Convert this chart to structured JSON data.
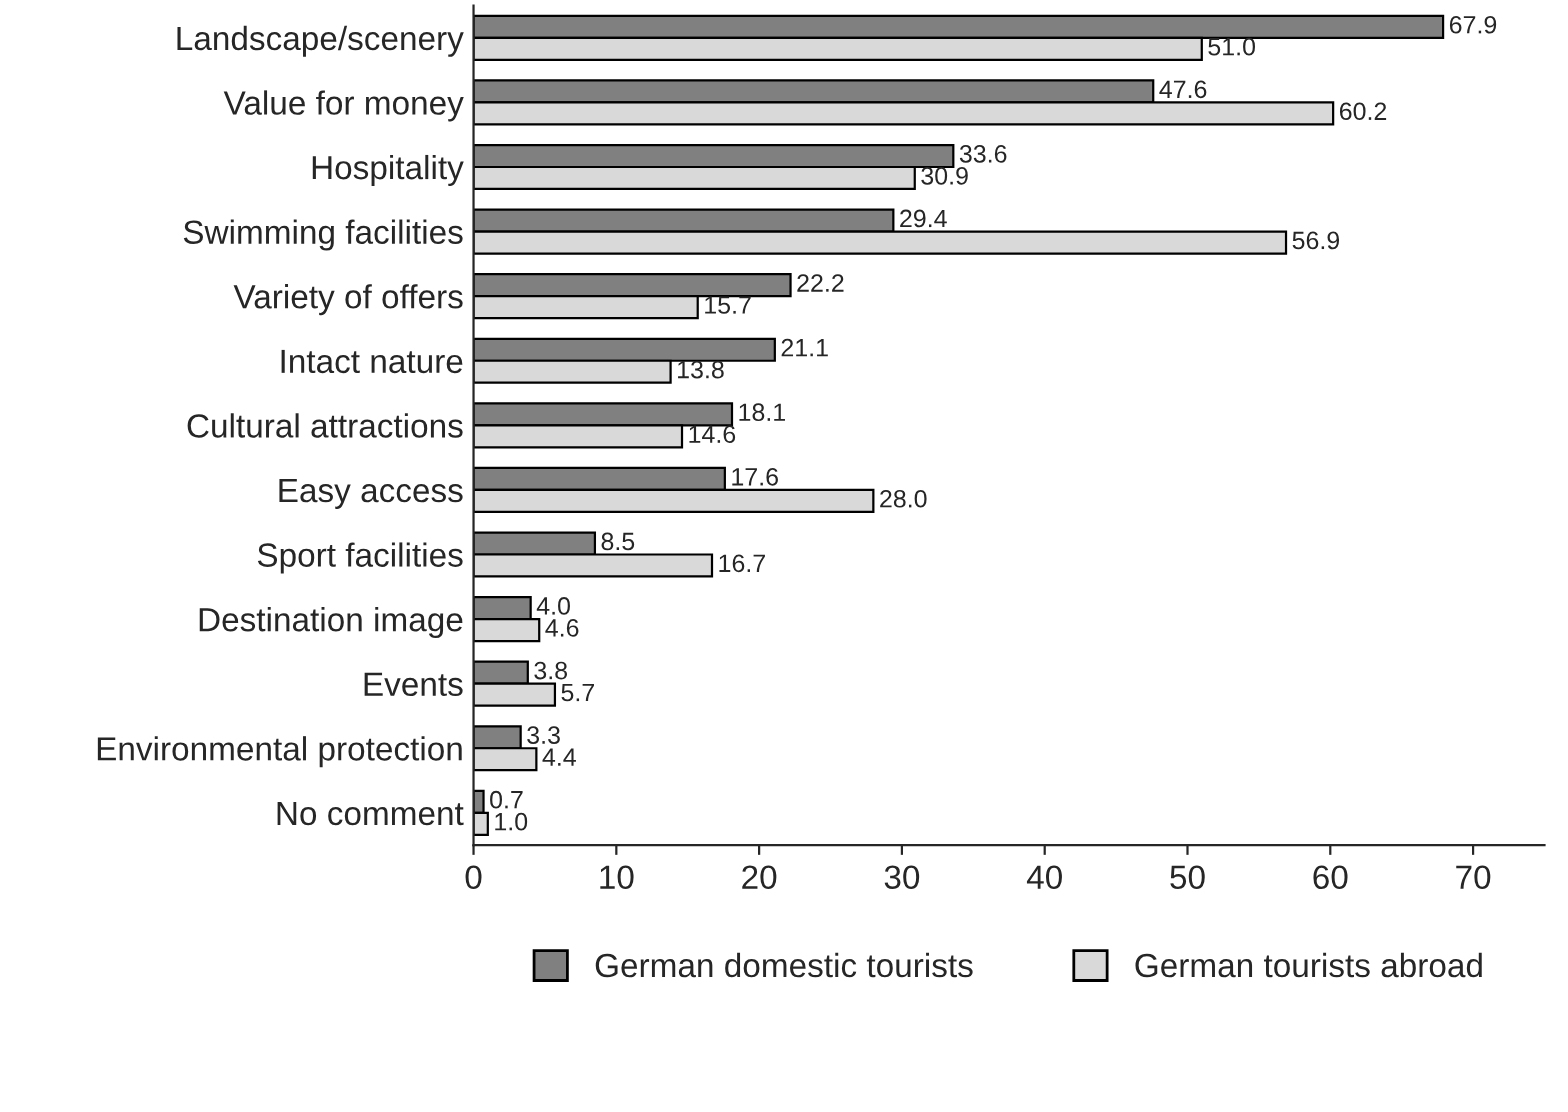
{
  "chart_data": {
    "type": "bar",
    "orientation": "horizontal",
    "categories": [
      "Landscape/scenery",
      "Value for money",
      "Hospitality",
      "Swimming facilities",
      "Variety of offers",
      "Intact nature",
      "Cultural attractions",
      "Easy access",
      "Sport facilities",
      "Destination image",
      "Events",
      "Environmental protection",
      "No comment"
    ],
    "series": [
      {
        "name": "German domestic tourists",
        "color": "#808080",
        "values": [
          67.9,
          47.6,
          33.6,
          29.4,
          22.2,
          21.1,
          18.1,
          17.6,
          8.5,
          4.0,
          3.8,
          3.3,
          0.7
        ],
        "value_labels": [
          "67.9",
          "47.6",
          "33.6",
          "29.4",
          "22.2",
          "21.1",
          "18.1",
          "17.6",
          "8.5",
          "4.0",
          "3.8",
          "3.3",
          "0.7"
        ]
      },
      {
        "name": "German tourists abroad",
        "color": "#d9d9d9",
        "values": [
          51.0,
          60.2,
          30.9,
          56.9,
          15.7,
          13.8,
          14.6,
          28.0,
          16.7,
          4.6,
          5.7,
          4.4,
          1.0
        ],
        "value_labels": [
          "51.0",
          "60.2",
          "30.9",
          "56.9",
          "15.7",
          "13.8",
          "14.6",
          "28.0",
          "16.7",
          "4.6",
          "5.7",
          "4.4",
          "1.0"
        ]
      }
    ],
    "xlim": [
      0,
      75
    ],
    "xticks": [
      0,
      10,
      20,
      30,
      40,
      50,
      60,
      70
    ],
    "legend": "bottom",
    "grid": false
  }
}
